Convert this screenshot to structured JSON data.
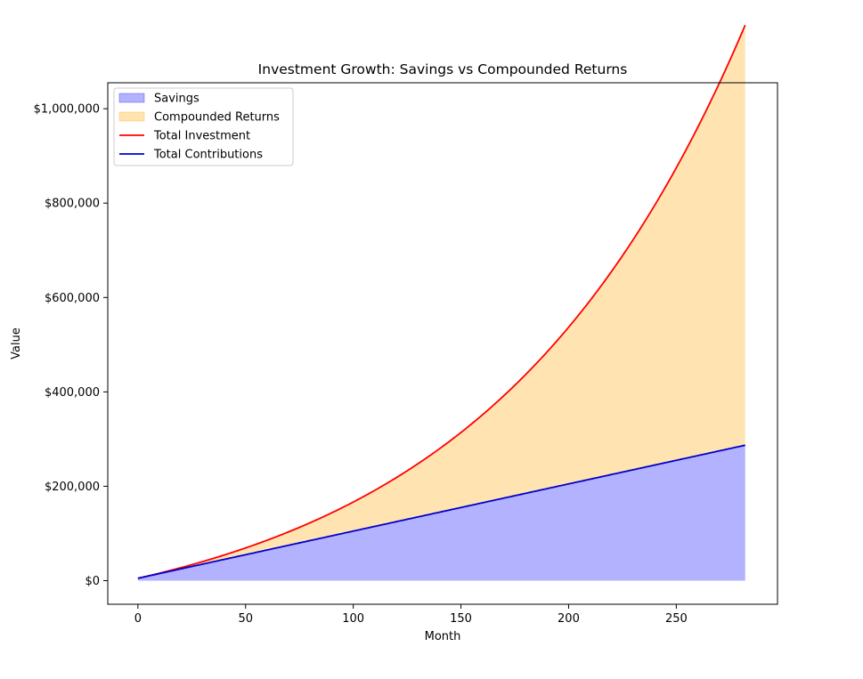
{
  "chart_data": {
    "type": "area",
    "title": "Investment Growth: Savings vs Compounded Returns",
    "xlabel": "Month",
    "ylabel": "Value",
    "xlim": [
      -14,
      297
    ],
    "ylim": [
      -50000,
      1055000
    ],
    "xticks": [
      0,
      50,
      100,
      150,
      200,
      250
    ],
    "yticks": [
      0,
      200000,
      400000,
      600000,
      800000,
      1000000
    ],
    "ytick_labels": [
      "$0",
      "$200,000",
      "$400,000",
      "$600,000",
      "$800,000",
      "$1,000,000"
    ],
    "model": {
      "months": 282,
      "initial_value": 5000,
      "monthly_contribution": 1000,
      "monthly_rate": 0.00833
    },
    "series": [
      {
        "name": "Savings",
        "kind": "fill",
        "color": "#0000ff",
        "opacity": 0.3,
        "from": 0,
        "to": "Total Contributions"
      },
      {
        "name": "Compounded Returns",
        "kind": "fill",
        "color": "#ffa500",
        "opacity": 0.3,
        "from": "Total Contributions",
        "to": "Total Investment"
      },
      {
        "name": "Total Investment",
        "kind": "line",
        "color": "#ff0000"
      },
      {
        "name": "Total Contributions",
        "kind": "line",
        "color": "#0000cc"
      }
    ],
    "legend": {
      "position": "top-left",
      "entries": [
        {
          "label": "Savings",
          "kind": "fill",
          "color": "#0000ff"
        },
        {
          "label": "Compounded Returns",
          "kind": "fill",
          "color": "#ffa500"
        },
        {
          "label": "Total Investment",
          "kind": "line",
          "color": "#ff0000"
        },
        {
          "label": "Total Contributions",
          "kind": "line",
          "color": "#0000cc"
        }
      ]
    },
    "grid": false
  }
}
